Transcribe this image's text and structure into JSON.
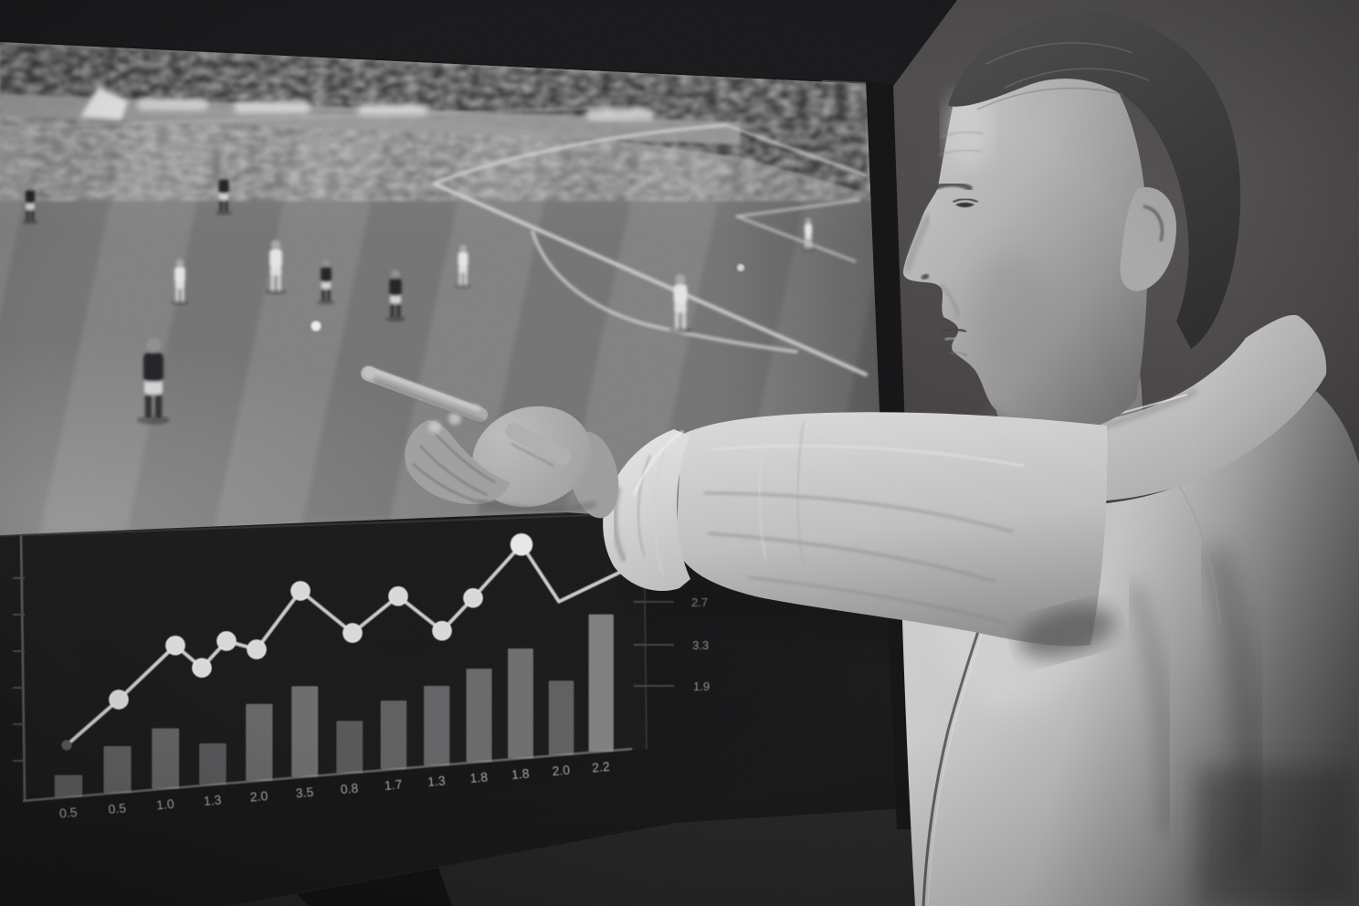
{
  "meta": {
    "description": "monochrome photo: football analyst in zip track-top pointing at a wall screen that shows a match wide-shot above a dark analytics chart"
  },
  "screen": {
    "video": {
      "team_dark_players": [
        [
          33,
          242,
          0.95
        ],
        [
          245,
          232,
          1.0
        ],
        [
          357,
          330,
          1.05
        ],
        [
          433,
          348,
          1.2
        ],
        [
          168,
          458,
          2.0
        ]
      ],
      "team_light_players": [
        [
          197,
          330,
          1.05
        ],
        [
          302,
          318,
          1.25
        ],
        [
          507,
          312,
          1.0
        ],
        [
          745,
          360,
          1.35
        ],
        [
          885,
          272,
          0.75
        ]
      ],
      "ball": [
        346,
        357
      ],
      "penalty_spot": [
        811,
        293
      ]
    }
  },
  "chart_data": [
    {
      "type": "line",
      "x": [
        73,
        130,
        192,
        221,
        248,
        281,
        329,
        386,
        436,
        484,
        518,
        571,
        612,
        688
      ],
      "values": [
        1.9,
        3.4,
        5.2,
        4.3,
        5.2,
        4.8,
        6.8,
        5.1,
        6.3,
        4.9,
        6.0,
        7.8,
        5.6,
        6.6
      ],
      "marker_count": 12,
      "right_axis_labels": [
        "2.7",
        "3.3",
        "1.9"
      ],
      "grid": false,
      "legend_position": "none"
    },
    {
      "type": "bar",
      "categories": [
        "0.5",
        "0.5",
        "1.0",
        "1.3",
        "2.0",
        "3.5",
        "0.8",
        "1.7",
        "1.3",
        "1.8",
        "1.8",
        "2.0",
        "2.2"
      ],
      "values": [
        0.8,
        1.7,
        2.2,
        1.5,
        2.8,
        3.3,
        1.9,
        2.5,
        2.9,
        3.4,
        4.0,
        2.7,
        5.0
      ]
    }
  ],
  "colors": {
    "bezel": "#17171a",
    "wall": "#464345",
    "pitch": "#7b7b7b",
    "chart_panel": "#1d1d1f",
    "chart_line": "#d8d8d8",
    "chart_bar": "#9a9a9a",
    "chart_label": "#a6a6a8",
    "right_label": "#8f8f91",
    "crowd": "#3b3b3d",
    "jacket": "#c9c9c9",
    "skin": "#adadad",
    "hair": "#3a3a3a"
  }
}
